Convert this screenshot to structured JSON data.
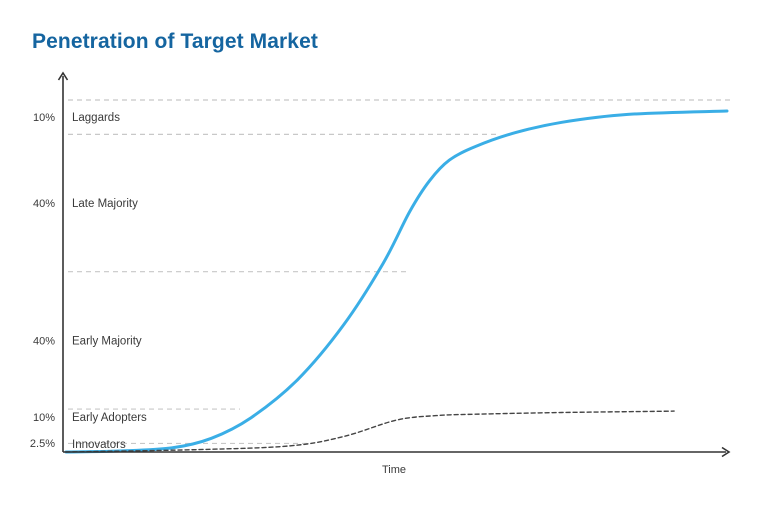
{
  "title": "Penetration of Target Market",
  "colors": {
    "title": "#1565a0",
    "adoption_curve": "#3aaee6",
    "cumulative_dashed": "#444444",
    "guide_lines": "#c8c8c8",
    "axis": "#333333"
  },
  "chart_data": {
    "type": "line",
    "title": "Penetration of Target Market",
    "xlabel": "Time",
    "ylabel": "",
    "grid": false,
    "x_ticks": false,
    "segments": [
      {
        "label": "Innovators",
        "percent": "2.5%",
        "share": 2.5
      },
      {
        "label": "Early Adopters",
        "percent": "10%",
        "share": 10
      },
      {
        "label": "Early Majority",
        "percent": "40%",
        "share": 40
      },
      {
        "label": "Late Majority",
        "percent": "40%",
        "share": 40
      },
      {
        "label": "Laggards",
        "percent": "10%",
        "share": 10
      }
    ],
    "series": [
      {
        "style": "solid",
        "x": [
          0,
          8,
          16,
          22,
          28,
          35,
          42,
          48,
          52,
          55,
          58,
          62,
          68,
          75,
          85,
          100
        ],
        "y": [
          0,
          0.3,
          1.2,
          4,
          10,
          21,
          37,
          55,
          70,
          79,
          85,
          89,
          93,
          96,
          98.3,
          99.3
        ]
      },
      {
        "style": "dashed",
        "x": [
          0,
          20,
          34,
          42,
          50,
          56,
          62,
          75,
          92
        ],
        "y": [
          0,
          0.7,
          1.8,
          4.5,
          9.3,
          10.6,
          11.0,
          11.5,
          11.9
        ]
      }
    ],
    "ylim": [
      0,
      102.5
    ],
    "xlim": [
      0,
      100
    ]
  }
}
